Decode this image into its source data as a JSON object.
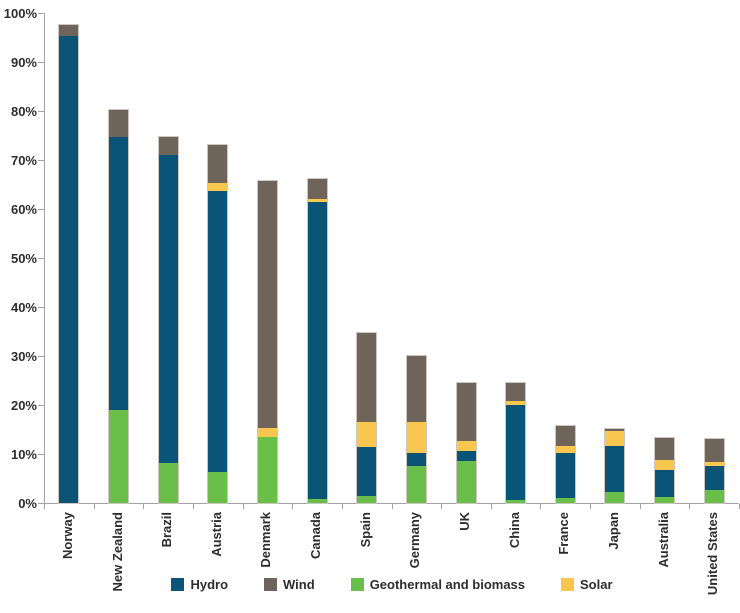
{
  "chart_data": {
    "type": "bar",
    "stacked": true,
    "title": "",
    "xlabel": "",
    "ylabel": "",
    "ylim": [
      0,
      100
    ],
    "grid": false,
    "legend_position": "bottom",
    "categories": [
      "Norway",
      "New Zealand",
      "Brazil",
      "Austria",
      "Denmark",
      "Canada",
      "Spain",
      "Germany",
      "UK",
      "China",
      "France",
      "Japan",
      "Australia",
      "United States"
    ],
    "series": [
      {
        "name": "Hydro",
        "color": "#0a5477",
        "values": [
          95.3,
          55.6,
          63.0,
          57.3,
          0,
          60.6,
          9.9,
          2.7,
          2.0,
          19.4,
          9.2,
          9.3,
          5.4,
          4.9
        ]
      },
      {
        "name": "Wind",
        "color": "#6f6459",
        "values": [
          2.2,
          5.7,
          3.7,
          7.8,
          50.6,
          4.0,
          18.2,
          13.5,
          11.8,
          3.5,
          4.1,
          0.6,
          4.4,
          4.6
        ]
      },
      {
        "name": "Geothermal and biomass",
        "color": "#6abf4a",
        "values": [
          0,
          19.0,
          8.1,
          6.3,
          13.5,
          0.8,
          1.5,
          7.6,
          8.6,
          0.6,
          1.0,
          2.3,
          1.3,
          2.7
        ]
      },
      {
        "name": "Solar",
        "color": "#f9c64f",
        "values": [
          0,
          0,
          0,
          1.7,
          1.7,
          0.7,
          5.1,
          6.3,
          2.1,
          0.9,
          1.4,
          3.0,
          2.1,
          0.8
        ]
      }
    ],
    "totals": [
      97.5,
      80.3,
      74.8,
      73.1,
      65.8,
      66.1,
      34.7,
      30.1,
      24.5,
      24.4,
      15.7,
      15.2,
      13.2,
      13.0
    ],
    "stack_order_bottom_to_top": [
      "Geothermal and biomass",
      "Hydro",
      "Solar",
      "Wind"
    ],
    "legend_order": [
      "Hydro",
      "Wind",
      "Geothermal and biomass",
      "Solar"
    ],
    "y_ticks": [
      "0%",
      "10%",
      "20%",
      "30%",
      "40%",
      "50%",
      "60%",
      "70%",
      "80%",
      "90%",
      "100%"
    ]
  },
  "colors": {
    "axis_line": "#a3a3a3",
    "label_text": "#2d2d2d",
    "bar_outline": "#ccc7c1",
    "background": "#ffffff"
  }
}
